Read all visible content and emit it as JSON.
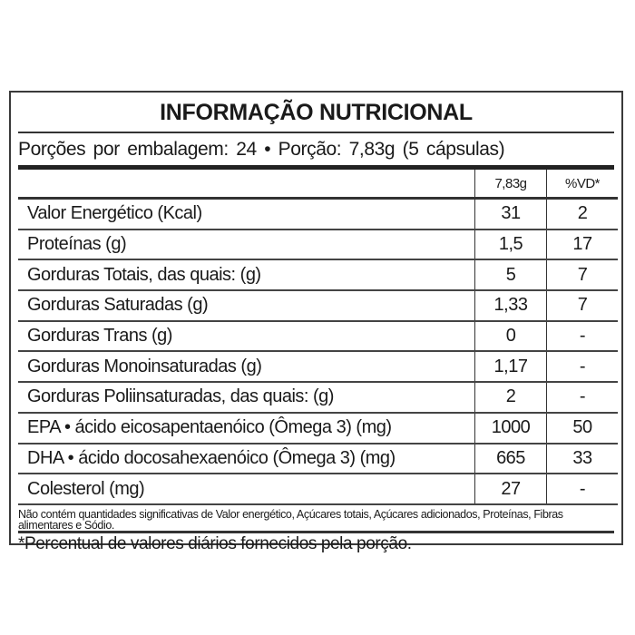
{
  "title": "INFORMAÇÃO NUTRICIONAL",
  "servings": "Porções por embalagem: 24 • Porção: 7,83g (5 cápsulas)",
  "header": {
    "amount": "7,83g",
    "dv": "%VD*"
  },
  "rows": [
    {
      "name": "Valor Energético (Kcal)",
      "amount": "31",
      "dv": "2"
    },
    {
      "name": "Proteínas (g)",
      "amount": "1,5",
      "dv": "17"
    },
    {
      "name": "Gorduras Totais, das quais: (g)",
      "amount": "5",
      "dv": "7"
    },
    {
      "name": "Gorduras Saturadas (g)",
      "amount": "1,33",
      "dv": "7"
    },
    {
      "name": "Gorduras Trans (g)",
      "amount": "0",
      "dv": "-"
    },
    {
      "name": "Gorduras Monoinsaturadas (g)",
      "amount": "1,17",
      "dv": "-"
    },
    {
      "name": "Gorduras Poliinsaturadas, das quais: (g)",
      "amount": "2",
      "dv": "-"
    },
    {
      "name": "EPA • ácido eicosapentaenóico (Ômega 3) (mg)",
      "amount": "1000",
      "dv": "50"
    },
    {
      "name": "DHA • ácido docosahexaenóico (Ômega 3) (mg)",
      "amount": "665",
      "dv": "33"
    },
    {
      "name": "Colesterol (mg)",
      "amount": "27",
      "dv": "-"
    }
  ],
  "footnote": "Não contém quantidades significativas de Valor energético, Açúcares totais, Açúcares adicionados, Proteínas, Fibras alimentares e Sódio.",
  "dv_note": "*Percentual de valores diários fornecidos pela porção."
}
